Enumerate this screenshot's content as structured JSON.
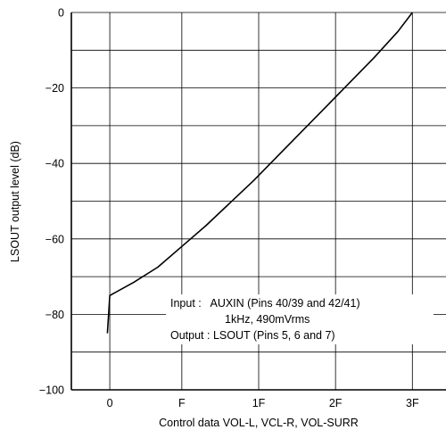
{
  "chart_data": {
    "type": "line",
    "title": "",
    "xlabel": "Control data VOL-L, VCL-R, VOL-SURR",
    "ylabel": "LSOUT output level (dB)",
    "x_ticks": [
      {
        "value": 0,
        "label": "0"
      },
      {
        "value": 15,
        "label": "F"
      },
      {
        "value": 31,
        "label": "1F"
      },
      {
        "value": 47,
        "label": "2F"
      },
      {
        "value": 63,
        "label": "3F"
      }
    ],
    "y_ticks": [
      {
        "value": 0,
        "label": "0"
      },
      {
        "value": -20,
        "label": "−20"
      },
      {
        "value": -40,
        "label": "−40"
      },
      {
        "value": -60,
        "label": "−60"
      },
      {
        "value": -80,
        "label": "−80"
      },
      {
        "value": -100,
        "label": "−100"
      }
    ],
    "xlim": [
      -8,
      70
    ],
    "ylim": [
      -100,
      0
    ],
    "grid": true,
    "series": [
      {
        "x": [
          -0.5,
          0,
          5,
          10,
          15,
          20,
          25,
          30,
          35,
          40,
          45,
          50,
          55,
          60,
          63
        ],
        "y": [
          -85,
          -75,
          -71.5,
          -67.5,
          -62,
          -56.5,
          -50.5,
          -44.5,
          -38,
          -31.5,
          -25,
          -18.5,
          -12,
          -5,
          0
        ]
      }
    ],
    "annotations": [
      "Input :   AUXIN (Pins 40/39 and 42/41)",
      "1kHz, 490mVrms",
      "Output : LSOUT (Pins 5, 6 and 7)"
    ]
  }
}
